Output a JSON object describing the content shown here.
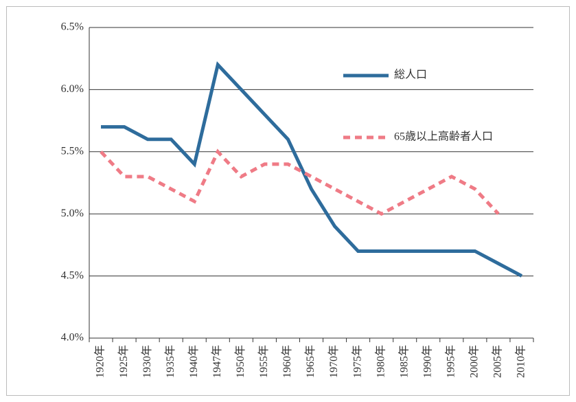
{
  "chart_data": {
    "type": "line",
    "categories": [
      "1920年",
      "1925年",
      "1930年",
      "1935年",
      "1940年",
      "1947年",
      "1950年",
      "1955年",
      "1960年",
      "1965年",
      "1970年",
      "1975年",
      "1980年",
      "1985年",
      "1990年",
      "1995年",
      "2000年",
      "2005年",
      "2010年"
    ],
    "series": [
      {
        "name": "総人口",
        "color": "#2e6c9c",
        "dash": false,
        "values": [
          5.7,
          5.7,
          5.6,
          5.6,
          5.4,
          6.2,
          6.0,
          5.8,
          5.6,
          5.2,
          4.9,
          4.7,
          4.7,
          4.7,
          4.7,
          4.7,
          4.7,
          4.6,
          4.5
        ]
      },
      {
        "name": "65歳以上高齢者人口",
        "color": "#ef7b86",
        "dash": true,
        "values": [
          5.5,
          5.3,
          5.3,
          5.2,
          5.1,
          5.5,
          5.3,
          5.4,
          5.4,
          5.3,
          5.2,
          5.1,
          5.0,
          5.1,
          5.2,
          5.3,
          5.2,
          5.0,
          null
        ]
      }
    ],
    "ylim": [
      4.0,
      6.5
    ],
    "yticks": [
      {
        "value": 4.0,
        "label": "4.0%"
      },
      {
        "value": 4.5,
        "label": "4.5%"
      },
      {
        "value": 5.0,
        "label": "5.0%"
      },
      {
        "value": 5.5,
        "label": "5.5%"
      },
      {
        "value": 6.0,
        "label": "6.0%"
      },
      {
        "value": 6.5,
        "label": "6.5%"
      }
    ],
    "grid": true
  }
}
